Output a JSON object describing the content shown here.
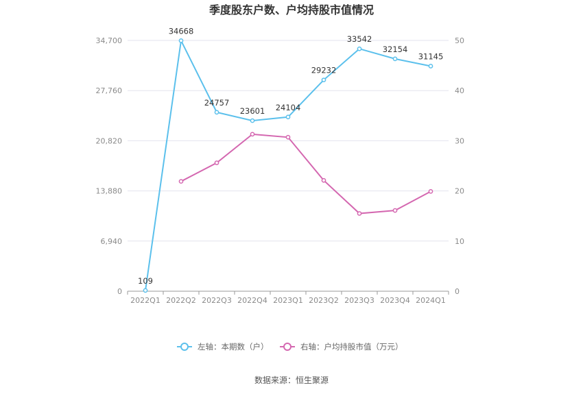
{
  "chart_data": {
    "type": "line",
    "title": "季度股东户数、户均持股市值情况",
    "categories": [
      "2022Q1",
      "2022Q2",
      "2022Q3",
      "2022Q4",
      "2023Q1",
      "2023Q2",
      "2023Q3",
      "2023Q4",
      "2024Q1"
    ],
    "left_axis": {
      "ylim": [
        0,
        34700
      ],
      "ticks": [
        "0",
        "6,940",
        "13,880",
        "20,820",
        "27,760",
        "34,700"
      ]
    },
    "right_axis": {
      "ylim": [
        0,
        50
      ],
      "ticks": [
        "0",
        "10",
        "20",
        "30",
        "40",
        "50"
      ]
    },
    "grid": true,
    "legend_position": "bottom",
    "series": [
      {
        "name": "左轴：本期数（户）",
        "axis": "left",
        "color": "#5bc0ec",
        "values": [
          109,
          34668,
          24757,
          23601,
          24104,
          29232,
          33542,
          32154,
          31145
        ],
        "labels": [
          "109",
          "34668",
          "24757",
          "23601",
          "24104",
          "29232",
          "33542",
          "32154",
          "31145"
        ]
      },
      {
        "name": "右轴：户均持股市值（万元）",
        "axis": "right",
        "color": "#d467b0",
        "values": [
          null,
          21.9,
          25.6,
          31.3,
          30.7,
          22.1,
          15.5,
          16.1,
          19.9
        ]
      }
    ],
    "source": "数据来源：恒生聚源"
  }
}
